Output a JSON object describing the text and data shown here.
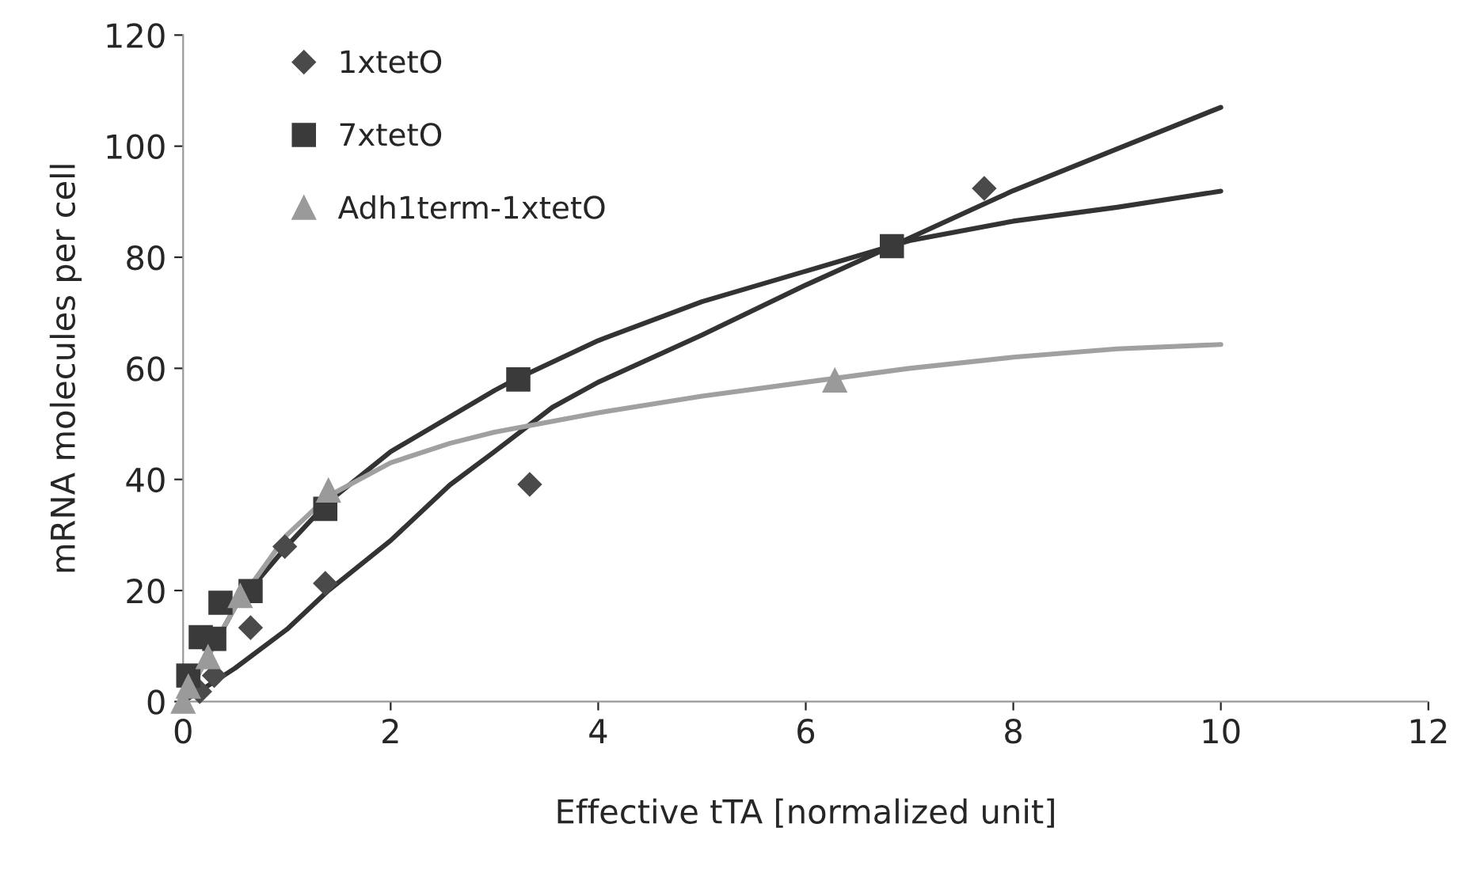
{
  "chart_data": {
    "type": "scatter",
    "xlabel": "Effective tTA [normalized unit]",
    "ylabel": "mRNA molecules per cell",
    "xlim": [
      0,
      12
    ],
    "xticks": [
      0,
      2,
      4,
      6,
      8,
      10,
      12
    ],
    "ylim": [
      0,
      120
    ],
    "yticks": [
      0,
      20,
      40,
      60,
      80,
      100,
      120
    ],
    "grid": false,
    "legend": "top left",
    "series": [
      {
        "name": "1xtetO",
        "marker": "diamond",
        "color": "#4a4a4a",
        "x": [
          0.16,
          0.3,
          0.65,
          0.98,
          1.37,
          3.34,
          7.72
        ],
        "values": [
          1.8,
          4.7,
          13.3,
          27.9,
          21.3,
          39.1,
          92.4
        ]
      },
      {
        "name": "7xtetO",
        "marker": "square",
        "color": "#3a3a3a",
        "x": [
          0.05,
          0.17,
          0.3,
          0.36,
          0.65,
          1.37,
          3.23,
          6.83
        ],
        "values": [
          4.7,
          11.6,
          11.3,
          17.8,
          19.9,
          34.7,
          58,
          82
        ]
      },
      {
        "name": "Adh1term-1xtetO",
        "marker": "triangle",
        "color": "#9a9a9a",
        "x": [
          0,
          0.05,
          0.24,
          0.55,
          1.4,
          6.28
        ],
        "values": [
          0,
          2.7,
          8,
          19,
          38,
          57.8
        ]
      },
      {
        "type": "line",
        "color": "#333333",
        "x": [
          0,
          0.5,
          1,
          1.4,
          2,
          2.57,
          3,
          3.56,
          4,
          5,
          6,
          6.83,
          8,
          9,
          10
        ],
        "values": [
          0,
          6,
          13,
          20,
          29,
          39,
          45,
          53,
          57.5,
          66,
          75,
          82,
          92,
          99.5,
          107
        ]
      },
      {
        "type": "line",
        "color": "#333333",
        "x": [
          0,
          0.5,
          1,
          1.4,
          2,
          3,
          3.2,
          4,
          5,
          6,
          7,
          8,
          9,
          10
        ],
        "values": [
          0,
          17,
          28,
          36,
          45,
          56,
          58,
          65,
          72,
          77.5,
          83,
          86.5,
          89,
          91.9
        ]
      },
      {
        "type": "line",
        "color": "#a0a0a0",
        "x": [
          0,
          0.5,
          1,
          1.4,
          2,
          2.57,
          3,
          4,
          5,
          6,
          7,
          8,
          9,
          10
        ],
        "values": [
          0,
          17,
          30,
          37,
          43,
          46.5,
          48.5,
          52,
          55,
          57.5,
          60,
          62,
          63.5,
          64.3
        ]
      }
    ]
  }
}
